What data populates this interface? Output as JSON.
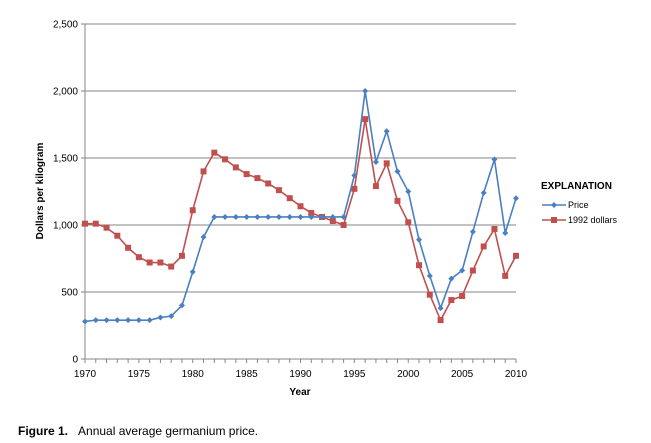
{
  "caption": {
    "label": "Figure 1.",
    "text": "Annual average germanium price."
  },
  "chart_data": {
    "type": "line",
    "title": "",
    "xlabel": "Year",
    "ylabel": "Dollars per kilogram",
    "xlim": [
      1970,
      2010
    ],
    "ylim": [
      0,
      2500
    ],
    "xticks": [
      "1970",
      "1975",
      "1980",
      "1985",
      "1990",
      "1995",
      "2000",
      "2005",
      "2010"
    ],
    "yticks": [
      "0",
      "500",
      "1,000",
      "1,500",
      "2,000",
      "2,500"
    ],
    "grid": "horizontal",
    "legend": {
      "title": "EXPLANATION",
      "placement": "right"
    },
    "x": [
      1970,
      1971,
      1972,
      1973,
      1974,
      1975,
      1976,
      1977,
      1978,
      1979,
      1980,
      1981,
      1982,
      1983,
      1984,
      1985,
      1986,
      1987,
      1988,
      1989,
      1990,
      1991,
      1992,
      1993,
      1994,
      1995,
      1996,
      1997,
      1998,
      1999,
      2000,
      2001,
      2002,
      2003,
      2004,
      2005,
      2006,
      2007,
      2008,
      2009,
      2010
    ],
    "series": [
      {
        "name": "Price",
        "color": "#4a7fc1",
        "marker": "diamond",
        "values": [
          280,
          290,
          290,
          290,
          290,
          290,
          290,
          310,
          320,
          400,
          650,
          910,
          1060,
          1060,
          1060,
          1060,
          1060,
          1060,
          1060,
          1060,
          1060,
          1060,
          1060,
          1060,
          1060,
          1370,
          2000,
          1470,
          1700,
          1400,
          1250,
          890,
          620,
          380,
          600,
          660,
          950,
          1240,
          1490,
          940,
          1200
        ]
      },
      {
        "name": "1992 dollars",
        "color": "#c0504d",
        "marker": "square",
        "values": [
          1010,
          1010,
          980,
          920,
          830,
          760,
          720,
          720,
          690,
          770,
          1110,
          1400,
          1540,
          1490,
          1430,
          1380,
          1350,
          1310,
          1260,
          1200,
          1140,
          1090,
          1060,
          1030,
          1000,
          1270,
          1790,
          1290,
          1460,
          1180,
          1020,
          700,
          480,
          290,
          440,
          470,
          660,
          840,
          970,
          620,
          770
        ]
      }
    ]
  }
}
